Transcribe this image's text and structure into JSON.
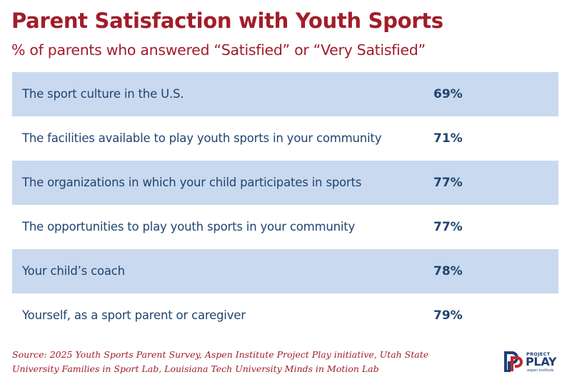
{
  "chart_data": {
    "type": "table",
    "title": "Parent Satisfaction with Youth Sports",
    "subtitle": "% of parents who answered “Satisfied” or “Very Satisfied”",
    "rows": [
      {
        "label": "The sport culture in the U.S.",
        "value": 69,
        "display": "69%"
      },
      {
        "label": "The facilities available to play youth sports in your community",
        "value": 71,
        "display": "71%"
      },
      {
        "label": "The organizations in which your child participates in sports",
        "value": 77,
        "display": "77%"
      },
      {
        "label": "The opportunities to play youth sports in your community",
        "value": 77,
        "display": "77%"
      },
      {
        "label": "Your child’s coach",
        "value": 78,
        "display": "78%"
      },
      {
        "label": "Yourself, as a sport parent or caregiver",
        "value": 79,
        "display": "79%"
      }
    ]
  },
  "source": {
    "line1": "Source: 2025 Youth Sports Parent Survey, Aspen Institute Project Play initiative, Utah State",
    "line2": "University Families in Sport Lab, Louisiana Tech University Minds in Motion Lab"
  },
  "logo": {
    "small": "PROJECT",
    "big": "PLAY",
    "tag": "aspen institute"
  },
  "colors": {
    "accent": "#a11d2a",
    "text": "#1f4470",
    "row_shade": "#c9d9ef"
  }
}
